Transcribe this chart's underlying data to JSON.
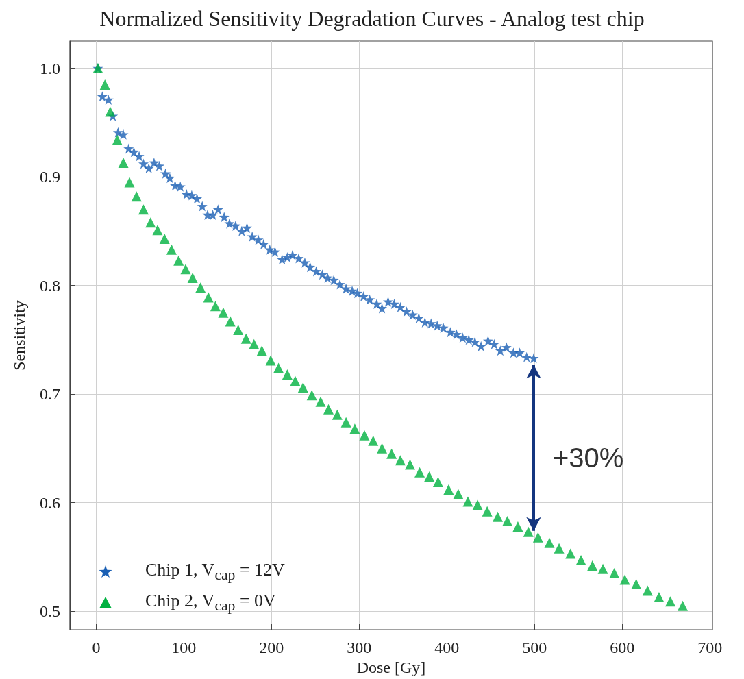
{
  "chart_data": {
    "type": "scatter",
    "title": "Normalized Sensitivity Degradation Curves - Analog test chip",
    "xlabel": "Dose [Gy]",
    "ylabel": "Sensitivity",
    "xlim": [
      -30,
      703
    ],
    "ylim": [
      0.483,
      1.025
    ],
    "xticks": [
      0,
      100,
      200,
      300,
      400,
      500,
      600,
      700
    ],
    "yticks": [
      0.5,
      0.6,
      0.7,
      0.8,
      0.9,
      {
        "value": 1,
        "label": "1.0"
      }
    ],
    "grid": true,
    "legend": "bottom left",
    "annotations": [
      "+30%"
    ],
    "series": [
      {
        "name": "Chip 1, V$_{cap}$ = 12V",
        "color": "#1a5fb4",
        "marker": "star",
        "x": [
          2,
          7,
          14,
          19,
          25,
          31,
          37,
          43,
          49,
          54,
          60,
          66,
          72,
          79,
          84,
          90,
          96,
          103,
          109,
          115,
          121,
          127,
          133,
          139,
          146,
          152,
          159,
          166,
          172,
          178,
          185,
          191,
          198,
          204,
          212,
          218,
          224,
          231,
          238,
          244,
          251,
          258,
          264,
          271,
          278,
          285,
          292,
          298,
          305,
          312,
          320,
          326,
          333,
          340,
          347,
          354,
          361,
          368,
          375,
          382,
          389,
          396,
          404,
          411,
          418,
          425,
          432,
          439,
          447,
          454,
          461,
          468,
          476,
          483,
          491,
          499
        ],
        "values": [
          1.0,
          0.974,
          0.971,
          0.956,
          0.941,
          0.939,
          0.926,
          0.923,
          0.919,
          0.912,
          0.908,
          0.913,
          0.91,
          0.903,
          0.899,
          0.892,
          0.891,
          0.884,
          0.883,
          0.88,
          0.873,
          0.865,
          0.865,
          0.87,
          0.863,
          0.857,
          0.855,
          0.85,
          0.853,
          0.845,
          0.842,
          0.838,
          0.833,
          0.831,
          0.824,
          0.826,
          0.828,
          0.825,
          0.821,
          0.817,
          0.813,
          0.81,
          0.807,
          0.805,
          0.801,
          0.797,
          0.795,
          0.793,
          0.79,
          0.787,
          0.783,
          0.779,
          0.785,
          0.783,
          0.78,
          0.776,
          0.773,
          0.77,
          0.766,
          0.765,
          0.763,
          0.761,
          0.757,
          0.755,
          0.752,
          0.75,
          0.748,
          0.744,
          0.749,
          0.746,
          0.74,
          0.743,
          0.738,
          0.738,
          0.734,
          0.733
        ]
      },
      {
        "name": "Chip 2, V$_{cap}$ = 0V",
        "color": "#00b140",
        "marker": "triangle",
        "x": [
          2,
          10,
          16,
          24,
          31,
          38,
          46,
          54,
          62,
          70,
          78,
          86,
          94,
          102,
          110,
          119,
          128,
          136,
          145,
          153,
          162,
          171,
          180,
          189,
          199,
          208,
          218,
          227,
          236,
          246,
          256,
          265,
          275,
          285,
          295,
          306,
          316,
          326,
          337,
          347,
          358,
          369,
          380,
          390,
          402,
          413,
          424,
          435,
          446,
          458,
          469,
          481,
          493,
          504,
          517,
          528,
          541,
          553,
          566,
          578,
          591,
          603,
          616,
          629,
          642,
          655,
          669
        ],
        "values": [
          1.0,
          0.985,
          0.96,
          0.934,
          0.913,
          0.895,
          0.882,
          0.87,
          0.858,
          0.851,
          0.843,
          0.833,
          0.823,
          0.815,
          0.807,
          0.798,
          0.789,
          0.781,
          0.775,
          0.767,
          0.759,
          0.751,
          0.746,
          0.74,
          0.731,
          0.724,
          0.718,
          0.712,
          0.706,
          0.699,
          0.693,
          0.686,
          0.681,
          0.674,
          0.668,
          0.662,
          0.657,
          0.65,
          0.645,
          0.639,
          0.635,
          0.628,
          0.624,
          0.619,
          0.612,
          0.608,
          0.601,
          0.598,
          0.592,
          0.587,
          0.583,
          0.578,
          0.573,
          0.568,
          0.563,
          0.558,
          0.553,
          0.547,
          0.542,
          0.539,
          0.535,
          0.529,
          0.525,
          0.519,
          0.513,
          0.509,
          0.505
        ]
      }
    ]
  }
}
